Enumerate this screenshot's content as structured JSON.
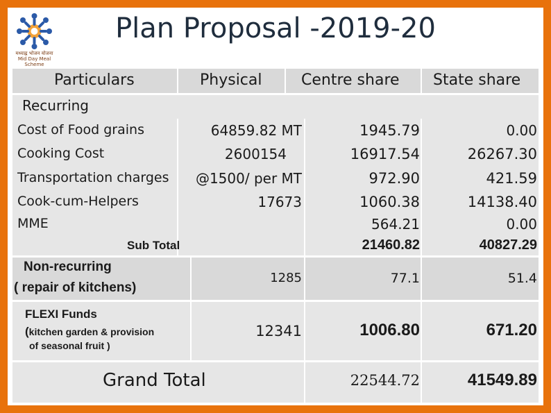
{
  "title": "Plan Proposal -2019-20",
  "logo": {
    "caption_line1": "मध्याह्न भोजन योजना",
    "caption_line2": "Mid Day Meal Scheme"
  },
  "headers": {
    "particulars": "Particulars",
    "physical": "Physical",
    "centre": "Centre share",
    "state": "State share"
  },
  "recurring_label": "Recurring",
  "rows": [
    {
      "label": "Cost of Food grains",
      "physical": "64859.82 MT",
      "centre": "1945.79",
      "state": "0.00"
    },
    {
      "label": "Cooking Cost",
      "physical": "2600154",
      "centre": "16917.54",
      "state": "26267.30"
    },
    {
      "label": "Transportation charges",
      "physical": "@1500/ per MT",
      "centre": "972.90",
      "state": "421.59"
    },
    {
      "label": "Cook-cum-Helpers",
      "physical": "17673",
      "centre": "1060.38",
      "state": "14138.40"
    },
    {
      "label": "MME",
      "physical": "",
      "centre": "564.21",
      "state": "0.00"
    }
  ],
  "subtotal": {
    "label": "Sub Total",
    "centre": "21460.82",
    "state": "40827.29"
  },
  "nonrecurring": {
    "label_line1": "Non-recurring",
    "label_line2": "( repair of kitchens)",
    "physical": "1285",
    "centre": "77.1",
    "state": "51.4"
  },
  "flexi": {
    "label_line1": "FLEXI Funds",
    "label_line2_prefix": "(",
    "label_line2_rest": "kitchen garden & provision",
    "label_line3": "of seasonal fruit )",
    "physical": "12341",
    "centre": "1006.80",
    "state": "671.20"
  },
  "grand_total": {
    "label": "Grand  Total",
    "centre": "22544.72",
    "state": "41549.89"
  }
}
